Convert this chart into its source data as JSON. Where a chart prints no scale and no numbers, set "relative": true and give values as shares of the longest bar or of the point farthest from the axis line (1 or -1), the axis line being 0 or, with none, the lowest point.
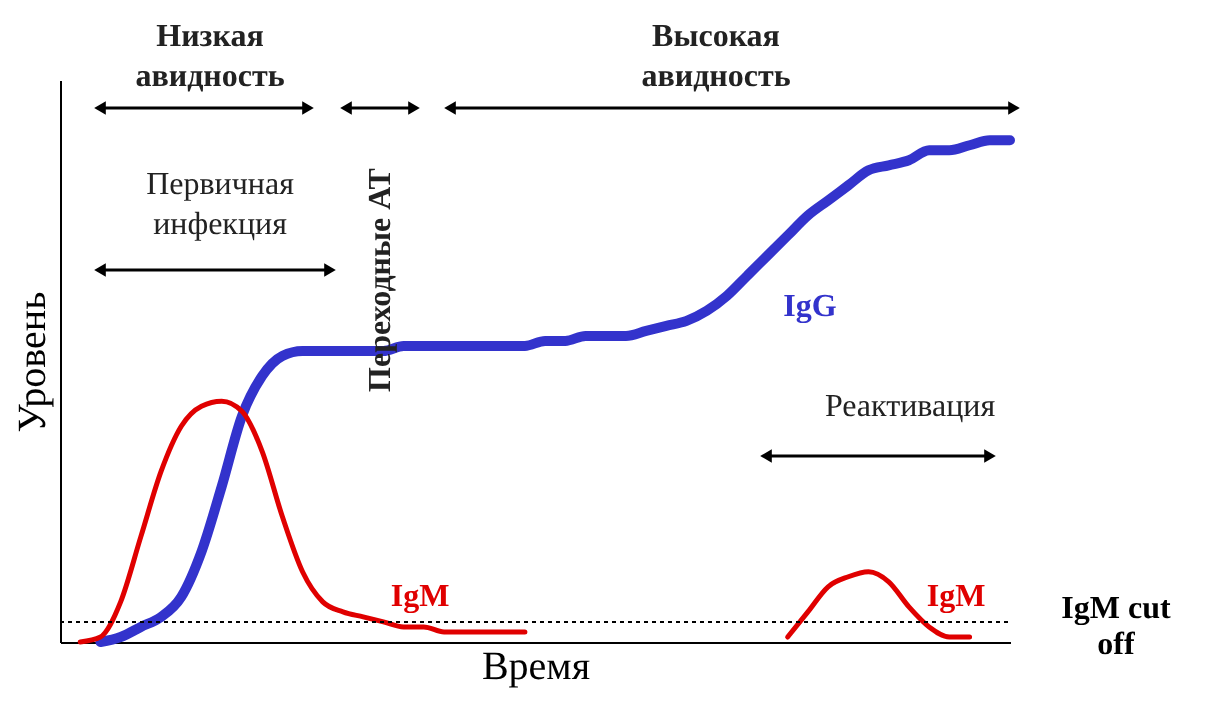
{
  "chart_data": {
    "type": "line",
    "relative": true,
    "xlabel": "Время",
    "ylabel": "Уровень",
    "legend": false,
    "categories": [
      null,
      null,
      null,
      null,
      null,
      null,
      null,
      null,
      null,
      null,
      null,
      null,
      null,
      null,
      null,
      null,
      null,
      null,
      null,
      null,
      null,
      null,
      null,
      null,
      null,
      null,
      null,
      null,
      null,
      null,
      null,
      null,
      null,
      null,
      null,
      null,
      null,
      null,
      null,
      null,
      null,
      null,
      null,
      null,
      null,
      null,
      null,
      null
    ],
    "series": [
      {
        "name": "IgG",
        "color": "#3333cc",
        "values": [
          null,
          null,
          0.0,
          0.01,
          0.03,
          0.05,
          0.09,
          0.18,
          0.31,
          0.45,
          0.53,
          0.57,
          0.58,
          0.58,
          0.58,
          0.58,
          0.58,
          0.59,
          0.59,
          0.59,
          0.59,
          0.59,
          0.59,
          0.59,
          0.6,
          0.6,
          0.61,
          0.61,
          0.61,
          0.62,
          0.63,
          0.64,
          0.66,
          0.69,
          0.73,
          0.77,
          0.81,
          0.85,
          0.88,
          0.91,
          0.94,
          0.95,
          0.96,
          0.98,
          0.98,
          0.99,
          1.0,
          1.0
        ]
      },
      {
        "name": "IgM",
        "color": "#e00000",
        "values": [
          null,
          0.0,
          0.01,
          0.08,
          0.21,
          0.34,
          0.43,
          0.47,
          0.48,
          0.46,
          0.38,
          0.25,
          0.14,
          0.08,
          0.06,
          0.05,
          0.04,
          0.03,
          0.03,
          0.02,
          0.02,
          0.02,
          0.02,
          0.02,
          null,
          null,
          null,
          null,
          null,
          null,
          null,
          null,
          null,
          null,
          null,
          null,
          null,
          null,
          null,
          null,
          null,
          null,
          null,
          null,
          null,
          null,
          null,
          null
        ]
      },
      {
        "name": "IgM",
        "color": "#e00000",
        "values": [
          null,
          null,
          null,
          null,
          null,
          null,
          null,
          null,
          null,
          null,
          null,
          null,
          null,
          null,
          null,
          null,
          null,
          null,
          null,
          null,
          null,
          null,
          null,
          null,
          null,
          null,
          null,
          null,
          null,
          null,
          null,
          null,
          null,
          null,
          null,
          null,
          0.01,
          0.06,
          0.11,
          0.13,
          0.14,
          0.12,
          0.07,
          0.03,
          0.01,
          0.01,
          null,
          null
        ]
      }
    ],
    "ref_lines": [
      {
        "axis": "y",
        "value": 0.04,
        "label": "IgM cut off",
        "color": "#000000",
        "line_style": "dotted"
      }
    ],
    "annotations": [
      "Низкая\nавидность",
      "Высокая\nавидность",
      "Первичная\nинфекция",
      "Переходные АТ",
      "Реактивация"
    ]
  }
}
